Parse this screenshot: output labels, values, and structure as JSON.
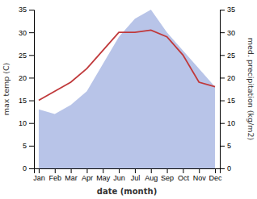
{
  "chart_data": {
    "type": "line",
    "x_label": "date (month)",
    "y_label": "max temp (C)",
    "y2_label": "med. precipitation (kg/m2)",
    "categories": [
      "Jan",
      "Feb",
      "Mar",
      "Apr",
      "May",
      "Jun",
      "Jul",
      "Aug",
      "Sep",
      "Oct",
      "Nov",
      "Dec"
    ],
    "series": [
      {
        "type": "area",
        "axis": "y2",
        "color": "#b8c4e8",
        "values": [
          13,
          12,
          14,
          17,
          23,
          29,
          33,
          35,
          30,
          26,
          22,
          18
        ]
      },
      {
        "type": "line",
        "color": "#c0393b",
        "values": [
          15,
          17,
          19,
          22,
          26,
          30,
          30,
          30.5,
          29,
          25,
          19,
          18
        ]
      }
    ],
    "ylim": [
      0,
      35
    ],
    "yticks": [
      0,
      5,
      10,
      15,
      20,
      25,
      30,
      35
    ],
    "y2lim": [
      0,
      35
    ],
    "y2ticks": [
      0,
      5,
      10,
      15,
      20,
      25,
      30,
      35
    ],
    "grid": false
  }
}
